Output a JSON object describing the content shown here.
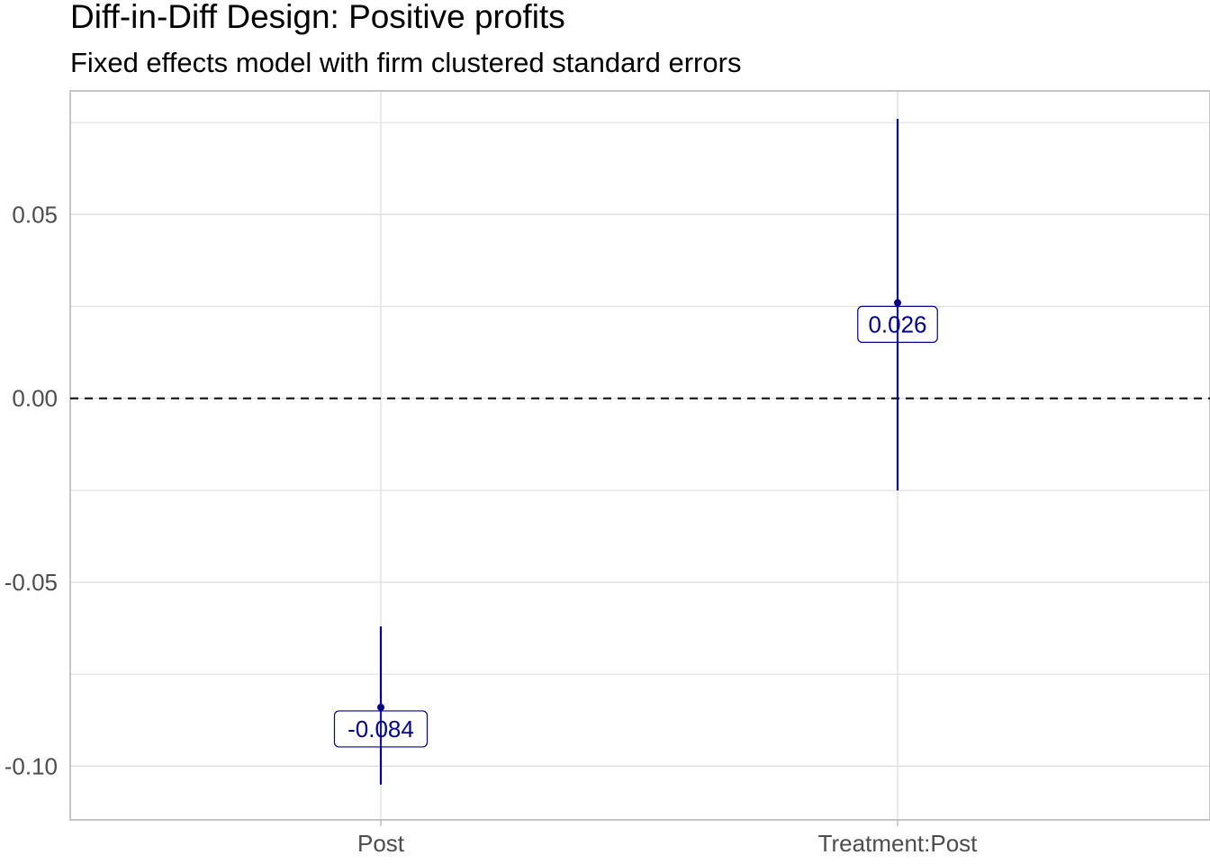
{
  "chart_data": {
    "type": "errorbar",
    "title": "Diff-in-Diff Design: Positive profits",
    "subtitle": "Fixed effects model with firm clustered standard errors",
    "xlabel": "",
    "ylabel": "",
    "categories": [
      "Post",
      "Treatment:Post"
    ],
    "estimates": [
      -0.084,
      0.026
    ],
    "ci_low": [
      -0.105,
      -0.025
    ],
    "ci_high": [
      -0.062,
      0.076
    ],
    "point_labels": [
      "-0.084",
      "0.026"
    ],
    "ylim": [
      -0.1146,
      0.0836
    ],
    "y_ticks": [
      -0.1,
      -0.05,
      0.0,
      0.05
    ],
    "y_tick_labels": [
      "-0.10",
      "-0.05",
      "0.00",
      "0.05"
    ],
    "reference_line": 0,
    "grid": true,
    "colors": {
      "series": "#00008b",
      "reference_line": "#000000",
      "grid": "#dedede",
      "panel_border": "#b3b3b3"
    }
  }
}
